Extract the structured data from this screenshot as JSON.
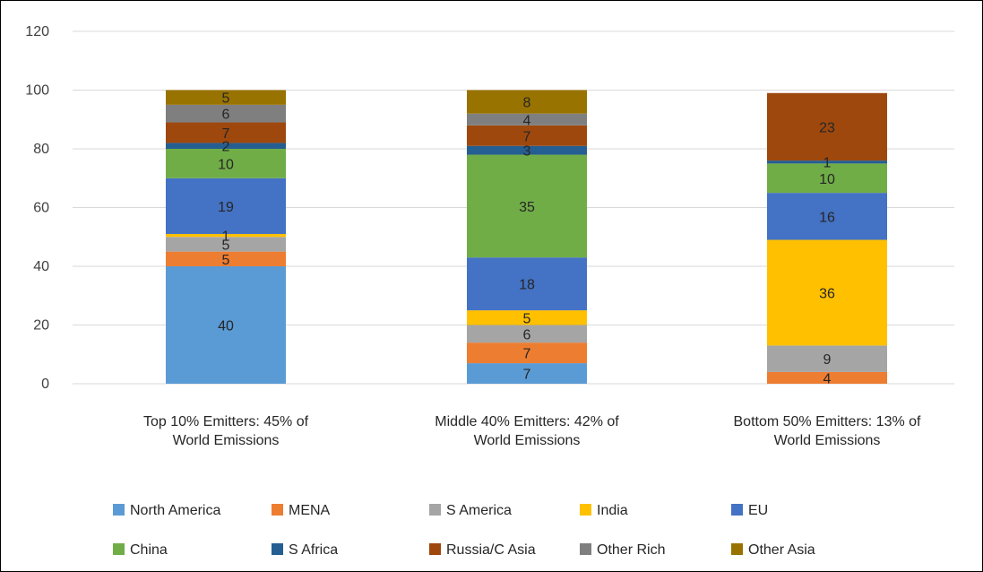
{
  "chart_data": {
    "type": "bar",
    "stacked": true,
    "title": "",
    "xlabel": "",
    "ylabel": "",
    "ylim": [
      0,
      120
    ],
    "yticks": [
      0,
      20,
      40,
      60,
      80,
      100,
      120
    ],
    "grid": true,
    "legend_position": "bottom",
    "categories": [
      [
        "Top 10% Emitters: 45% of",
        "World Emissions"
      ],
      [
        "Middle 40% Emitters: 42% of",
        "World Emissions"
      ],
      [
        "Bottom 50% Emitters: 13% of",
        "World Emissions"
      ]
    ],
    "series": [
      {
        "name": "North America",
        "color": "#5b9bd5",
        "values": [
          40,
          7,
          0
        ]
      },
      {
        "name": "MENA",
        "color": "#ed7d31",
        "values": [
          5,
          7,
          4
        ]
      },
      {
        "name": "S America",
        "color": "#a5a5a5",
        "values": [
          5,
          6,
          9
        ]
      },
      {
        "name": "India",
        "color": "#ffc000",
        "values": [
          1,
          5,
          36
        ]
      },
      {
        "name": "EU",
        "color": "#4472c4",
        "values": [
          19,
          18,
          16
        ]
      },
      {
        "name": "China",
        "color": "#70ad47",
        "values": [
          10,
          35,
          10
        ]
      },
      {
        "name": "S Africa",
        "color": "#255e91",
        "values": [
          2,
          3,
          1
        ]
      },
      {
        "name": "Russia/C Asia",
        "color": "#9e480e",
        "values": [
          7,
          7,
          23
        ]
      },
      {
        "name": "Other Rich",
        "color": "#7f7f7f",
        "values": [
          6,
          4,
          0
        ]
      },
      {
        "name": "Other Asia",
        "color": "#997300",
        "values": [
          5,
          8,
          0
        ]
      }
    ]
  }
}
